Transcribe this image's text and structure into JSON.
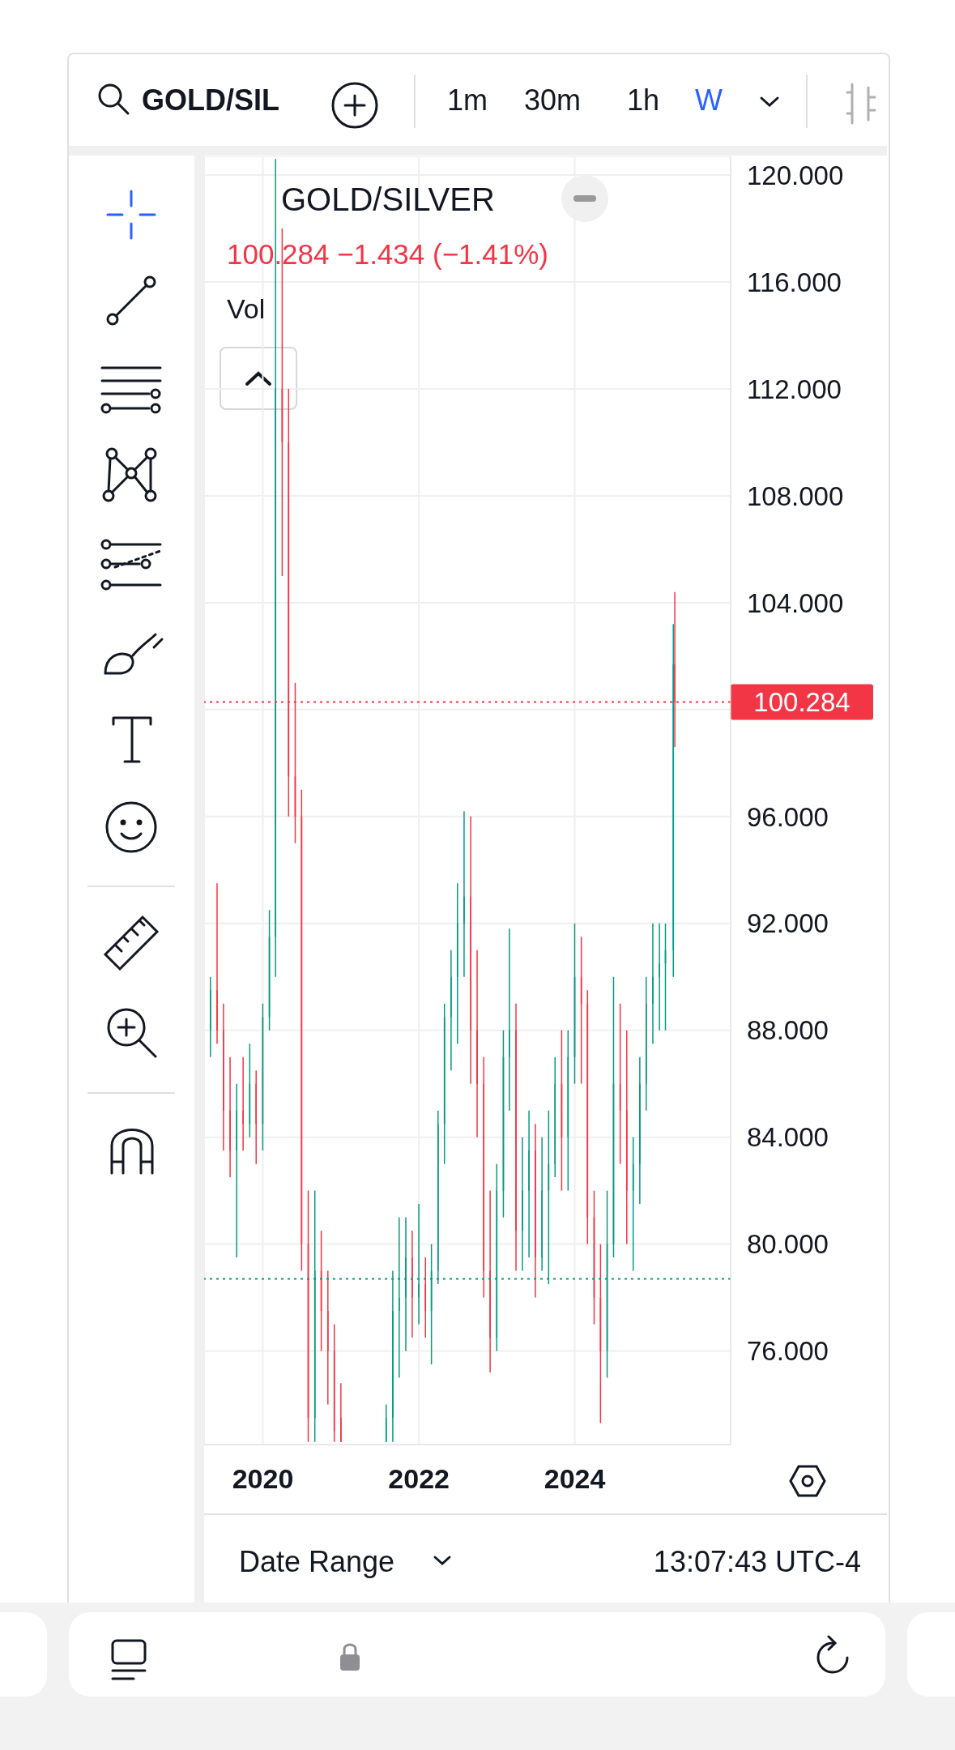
{
  "chart_data": {
    "type": "candlestick",
    "title": "GOLD/SILVER",
    "subtitle": "100.284 −1.434 (−1.41%)",
    "annotations": [
      "GOLD/SIL",
      "1m",
      "30m",
      "1h",
      "W",
      "Vol",
      "Date Range",
      "13:07:43 UTC-4"
    ],
    "x": [
      "2019-05-01",
      "2019-06-01",
      "2019-07-01",
      "2019-08-01",
      "2019-09-01",
      "2019-10-01",
      "2019-11-01",
      "2019-12-01",
      "2020-01-01",
      "2020-02-01",
      "2020-03-01",
      "2020-04-01",
      "2020-05-01",
      "2020-06-01",
      "2020-07-01",
      "2020-08-01",
      "2020-09-01",
      "2020-10-01",
      "2020-11-01",
      "2020-12-01",
      "2021-01-01",
      "2021-08-01",
      "2021-09-01",
      "2021-10-01",
      "2021-11-01",
      "2021-12-01",
      "2022-01-01",
      "2022-02-01",
      "2022-03-01",
      "2022-04-01",
      "2022-05-01",
      "2022-06-01",
      "2022-07-01",
      "2022-08-01",
      "2022-09-01",
      "2022-10-01",
      "2022-11-01",
      "2022-12-01",
      "2023-01-01",
      "2023-02-01",
      "2023-03-01",
      "2023-04-01",
      "2023-05-01",
      "2023-06-01",
      "2023-07-01",
      "2023-08-01",
      "2023-09-01",
      "2023-10-01",
      "2023-11-01",
      "2023-12-01",
      "2024-01-01",
      "2024-02-01",
      "2024-03-01",
      "2024-04-01",
      "2024-05-01",
      "2024-06-01",
      "2024-07-01",
      "2024-08-01",
      "2024-09-01",
      "2024-10-01",
      "2024-11-01",
      "2024-12-01",
      "2025-01-01",
      "2025-02-01",
      "2025-03-01",
      "2025-04-07",
      "2025-04-14"
    ],
    "ohlc": [
      [
        88,
        90,
        87,
        89.5
      ],
      [
        89.5,
        93.5,
        87.5,
        88
      ],
      [
        88,
        89,
        83.5,
        85
      ],
      [
        85,
        87,
        82.5,
        83.5
      ],
      [
        83.5,
        86,
        79.5,
        85
      ],
      [
        85,
        87,
        83.5,
        84.5
      ],
      [
        84.5,
        87.5,
        84,
        86
      ],
      [
        86,
        86.5,
        83,
        84.5
      ],
      [
        84.5,
        89,
        83.5,
        88.5
      ],
      [
        88.5,
        92.5,
        88,
        91.5
      ],
      [
        91.5,
        120.6,
        90,
        112
      ],
      [
        112,
        118,
        105,
        110
      ],
      [
        110,
        112,
        96,
        97.5
      ],
      [
        97.5,
        101,
        95,
        96
      ],
      [
        96,
        97,
        79,
        80
      ],
      [
        80,
        82,
        72.6,
        73.5
      ],
      [
        73.5,
        82,
        72.6,
        79
      ],
      [
        79,
        80.5,
        76,
        77.5
      ],
      [
        77.5,
        79,
        74,
        76
      ],
      [
        76,
        77,
        72.6,
        73
      ],
      [
        73.5,
        74.8,
        72.6,
        72.6
      ],
      [
        72.6,
        74,
        72.6,
        73.5
      ],
      [
        73.5,
        79,
        72.6,
        77.5
      ],
      [
        77.5,
        81,
        75,
        78
      ],
      [
        78,
        81,
        76,
        79.5
      ],
      [
        79.5,
        80.5,
        76.5,
        78
      ],
      [
        78,
        81.5,
        77,
        78.5
      ],
      [
        78.5,
        79.5,
        76.5,
        77.5
      ],
      [
        77.5,
        80,
        75.5,
        79
      ],
      [
        79,
        85,
        78.5,
        84.5
      ],
      [
        84.5,
        89,
        83,
        88.5
      ],
      [
        88.5,
        91,
        86.5,
        90
      ],
      [
        90,
        93.5,
        87.5,
        92
      ],
      [
        92,
        96.2,
        90,
        93
      ],
      [
        93,
        96,
        86,
        88
      ],
      [
        88,
        91,
        84,
        86
      ],
      [
        86,
        87,
        78,
        79
      ],
      [
        79,
        82,
        75.2,
        76.5
      ],
      [
        76.5,
        83,
        76,
        82
      ],
      [
        82,
        88,
        81,
        87
      ],
      [
        87,
        91.8,
        85,
        88
      ],
      [
        88,
        89,
        79,
        80.5
      ],
      [
        80.5,
        84,
        79,
        82
      ],
      [
        82,
        85,
        79.5,
        83.5
      ],
      [
        83.5,
        84.5,
        78,
        79.5
      ],
      [
        79.5,
        84,
        79,
        82
      ],
      [
        82,
        85,
        78.5,
        83
      ],
      [
        83,
        87,
        82.5,
        86
      ],
      [
        86,
        88,
        82,
        84
      ],
      [
        84,
        88,
        82,
        87
      ],
      [
        87,
        92,
        86,
        90
      ],
      [
        90,
        91.5,
        86,
        89
      ],
      [
        89,
        89.5,
        80,
        81
      ],
      [
        81,
        82,
        77,
        78
      ],
      [
        78,
        80,
        73.3,
        76
      ],
      [
        76,
        82,
        75,
        80
      ],
      [
        80,
        90,
        79.5,
        86
      ],
      [
        86,
        89,
        83,
        85
      ],
      [
        85,
        88,
        80,
        82
      ],
      [
        82,
        84,
        79,
        83
      ],
      [
        83,
        87,
        81.5,
        86
      ],
      [
        86,
        90,
        85,
        89
      ],
      [
        89,
        92,
        87.5,
        90
      ],
      [
        90,
        92,
        88,
        90.5
      ],
      [
        90.5,
        92,
        88,
        91
      ],
      [
        91,
        103.2,
        90,
        101.7
      ],
      [
        101.7,
        104.4,
        98.6,
        100.284
      ]
    ],
    "colors": [
      "#089981",
      "#f23645",
      "#f23645",
      "#f23645",
      "#089981",
      "#f23645",
      "#089981",
      "#f23645",
      "#089981",
      "#089981",
      "#089981",
      "#f23645",
      "#f23645",
      "#f23645",
      "#f23645",
      "#f23645",
      "#089981",
      "#f23645",
      "#f23645",
      "#f23645",
      "#f23645",
      "#089981",
      "#089981",
      "#089981",
      "#089981",
      "#f23645",
      "#089981",
      "#f23645",
      "#089981",
      "#089981",
      "#089981",
      "#089981",
      "#089981",
      "#089981",
      "#f23645",
      "#f23645",
      "#f23645",
      "#f23645",
      "#089981",
      "#089981",
      "#089981",
      "#f23645",
      "#089981",
      "#089981",
      "#f23645",
      "#089981",
      "#089981",
      "#089981",
      "#f23645",
      "#089981",
      "#089981",
      "#f23645",
      "#f23645",
      "#f23645",
      "#f23645",
      "#089981",
      "#089981",
      "#f23645",
      "#f23645",
      "#089981",
      "#089981",
      "#089981",
      "#089981",
      "#089981",
      "#089981",
      "#089981",
      "#f23645"
    ],
    "xlim": [
      "2019-04-01",
      "2025-12-31"
    ],
    "xticks": [
      {
        "value": "2020-01-01",
        "label": "2020"
      },
      {
        "value": "2022-01-01",
        "label": "2022"
      },
      {
        "value": "2024-01-01",
        "label": "2024"
      }
    ],
    "ylim": [
      72.5,
      120.7
    ],
    "yticks": [
      {
        "value": 76,
        "label": "76.000"
      },
      {
        "value": 80,
        "label": "80.000"
      },
      {
        "value": 84,
        "label": "84.000"
      },
      {
        "value": 88,
        "label": "88.000"
      },
      {
        "value": 92,
        "label": "92.000"
      },
      {
        "value": 96,
        "label": "96.000"
      },
      {
        "value": 100,
        "label": null
      },
      {
        "value": 104,
        "label": "104.000"
      },
      {
        "value": 108,
        "label": "108.000"
      },
      {
        "value": 112,
        "label": "112.000"
      },
      {
        "value": 116,
        "label": "116.000"
      },
      {
        "value": 120,
        "label": "120.000"
      }
    ],
    "ref_lines": [
      {
        "axis": "y",
        "value": 100.284,
        "label": "100.284",
        "color": "#f23645",
        "line_style": "dotted"
      },
      {
        "axis": "y",
        "value": 78.7,
        "color": "#089981",
        "line_style": "dotted"
      }
    ],
    "grid": true
  }
}
